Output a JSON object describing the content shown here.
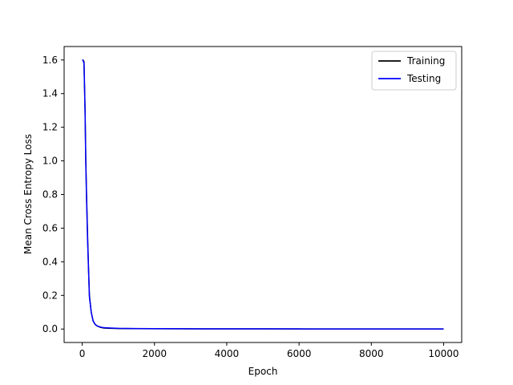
{
  "chart_data": {
    "type": "line",
    "title": "",
    "xlabel": "Epoch",
    "ylabel": "Mean Cross Entropy Loss",
    "xlim": [
      -500,
      10500
    ],
    "ylim": [
      -0.08,
      1.68
    ],
    "xticks": [
      0,
      2000,
      4000,
      6000,
      8000,
      10000
    ],
    "yticks": [
      0.0,
      0.2,
      0.4,
      0.6,
      0.8,
      1.0,
      1.2,
      1.4,
      1.6
    ],
    "xtick_labels": [
      "0",
      "2000",
      "4000",
      "6000",
      "8000",
      "10000"
    ],
    "ytick_labels": [
      "0.0",
      "0.2",
      "0.4",
      "0.6",
      "0.8",
      "1.0",
      "1.2",
      "1.4",
      "1.6"
    ],
    "grid": false,
    "legend_position": "top-right",
    "series": [
      {
        "name": "Training",
        "color": "#000000",
        "x": [
          0,
          20,
          50,
          80,
          100,
          120,
          150,
          180,
          200,
          250,
          300,
          350,
          400,
          500,
          600,
          800,
          1000,
          1500,
          2000,
          3000,
          4000,
          5000,
          6000,
          7000,
          8000,
          9000,
          10000
        ],
        "y": [
          1.6,
          1.6,
          1.59,
          1.3,
          1.0,
          0.8,
          0.55,
          0.33,
          0.2,
          0.1,
          0.05,
          0.03,
          0.02,
          0.01,
          0.006,
          0.004,
          0.003,
          0.002,
          0.0015,
          0.001,
          0.001,
          0.0008,
          0.0006,
          0.0005,
          0.0004,
          0.0004,
          0.0003
        ]
      },
      {
        "name": "Testing",
        "color": "#0000ff",
        "x": [
          0,
          20,
          50,
          80,
          100,
          120,
          150,
          180,
          200,
          250,
          300,
          350,
          400,
          500,
          600,
          800,
          1000,
          1500,
          2000,
          3000,
          4000,
          5000,
          6000,
          7000,
          8000,
          9000,
          10000
        ],
        "y": [
          1.6,
          1.6,
          1.58,
          1.28,
          0.98,
          0.78,
          0.52,
          0.32,
          0.19,
          0.1,
          0.05,
          0.03,
          0.02,
          0.012,
          0.008,
          0.006,
          0.004,
          0.003,
          0.002,
          0.0015,
          0.001,
          0.001,
          0.0008,
          0.0006,
          0.0005,
          0.0005,
          0.0004
        ]
      }
    ]
  }
}
